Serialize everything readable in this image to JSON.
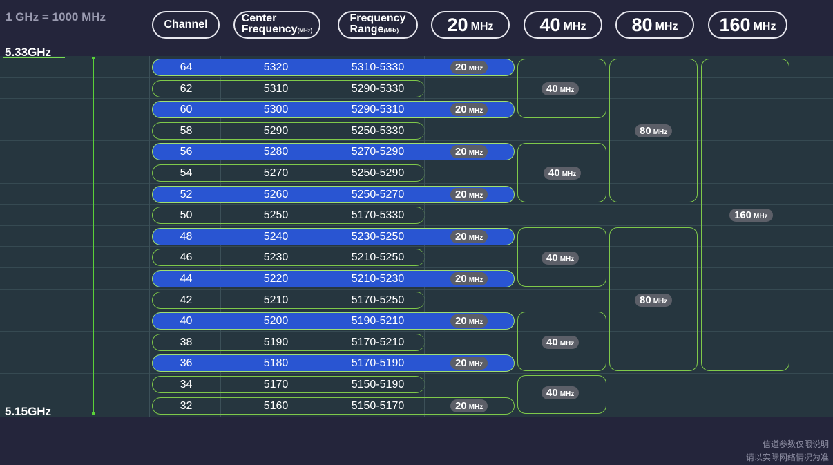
{
  "note": "1 GHz = 1000 MHz",
  "headers": {
    "channel": "Channel",
    "center_line1": "Center",
    "center_line2": "Frequency",
    "center_unit": "(MHz)",
    "range_line1": "Frequency",
    "range_line2": "Range",
    "range_unit": "(MHz)",
    "w20": "20",
    "w40": "40",
    "w80": "80",
    "w160": "160",
    "unit": "MHz"
  },
  "axis": {
    "top_label": "5.33GHz",
    "bottom_label": "5.15GHz"
  },
  "rows": [
    {
      "channel": "64",
      "center": "5320",
      "range": "5310-5330",
      "w20": true
    },
    {
      "channel": "62",
      "center": "5310",
      "range": "5290-5330",
      "w20": false
    },
    {
      "channel": "60",
      "center": "5300",
      "range": "5290-5310",
      "w20": true
    },
    {
      "channel": "58",
      "center": "5290",
      "range": "5250-5330",
      "w20": false
    },
    {
      "channel": "56",
      "center": "5280",
      "range": "5270-5290",
      "w20": true
    },
    {
      "channel": "54",
      "center": "5270",
      "range": "5250-5290",
      "w20": false
    },
    {
      "channel": "52",
      "center": "5260",
      "range": "5250-5270",
      "w20": true
    },
    {
      "channel": "50",
      "center": "5250",
      "range": "5170-5330",
      "w20": false
    },
    {
      "channel": "48",
      "center": "5240",
      "range": "5230-5250",
      "w20": true
    },
    {
      "channel": "46",
      "center": "5230",
      "range": "5210-5250",
      "w20": false
    },
    {
      "channel": "44",
      "center": "5220",
      "range": "5210-5230",
      "w20": true
    },
    {
      "channel": "42",
      "center": "5210",
      "range": "5170-5250",
      "w20": false
    },
    {
      "channel": "40",
      "center": "5200",
      "range": "5190-5210",
      "w20": true
    },
    {
      "channel": "38",
      "center": "5190",
      "range": "5170-5210",
      "w20": false
    },
    {
      "channel": "36",
      "center": "5180",
      "range": "5170-5190",
      "w20": true
    },
    {
      "channel": "34",
      "center": "5170",
      "range": "5150-5190",
      "w20": false
    },
    {
      "channel": "32",
      "center": "5160",
      "range": "5150-5170",
      "w20": true,
      "outline": true
    }
  ],
  "badges": {
    "w20": "20",
    "w40": "40",
    "w80": "80",
    "w160": "160",
    "unit": "MHz"
  },
  "disclaimer": {
    "line1": "信道参数仅限说明",
    "line2": "请以实际网络情况为准"
  },
  "colors": {
    "background": "#24253b",
    "grid": "#26363f",
    "blue_pill": "#2955d2",
    "outline_green": "#7fc94a",
    "badge": "#5c5f68"
  }
}
